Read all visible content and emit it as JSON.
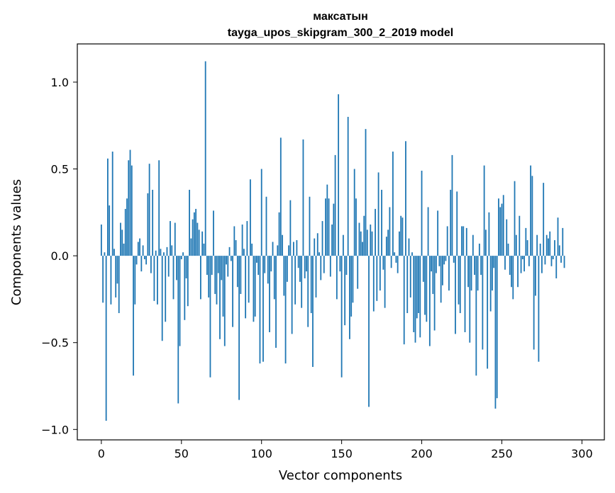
{
  "chart_data": {
    "type": "bar",
    "title": [
      "максатын",
      "tayga_upos_skipgram_300_2_2019 model"
    ],
    "xlabel": "Vector components",
    "ylabel": "Components values",
    "xlim": [
      -15,
      314
    ],
    "ylim": [
      -1.06,
      1.22
    ],
    "xticks": [
      0,
      50,
      100,
      150,
      200,
      250,
      300
    ],
    "yticks": [
      -1.0,
      -0.5,
      0.0,
      0.5,
      1.0
    ],
    "ytick_labels": [
      "−1.0",
      "−0.5",
      "0.0",
      "0.5",
      "1.0"
    ],
    "grid": false,
    "bar_color": "#1f77b4",
    "values": [
      0.18,
      -0.27,
      0.02,
      -0.95,
      0.56,
      0.29,
      -0.28,
      0.6,
      0.04,
      -0.24,
      -0.16,
      -0.33,
      0.19,
      0.15,
      0.07,
      0.27,
      0.33,
      0.55,
      0.61,
      0.52,
      -0.69,
      -0.28,
      -0.05,
      0.08,
      0.1,
      -0.09,
      0.06,
      -0.02,
      -0.05,
      0.36,
      0.53,
      -0.1,
      0.38,
      -0.26,
      0.03,
      -0.28,
      0.55,
      0.04,
      -0.49,
      0.02,
      -0.38,
      0.05,
      -0.12,
      0.2,
      0.06,
      -0.25,
      0.19,
      -0.14,
      -0.85,
      -0.52,
      -0.02,
      0.02,
      -0.37,
      -0.13,
      -0.29,
      0.38,
      0.1,
      0.21,
      0.25,
      0.27,
      0.19,
      0.15,
      -0.25,
      0.14,
      0.07,
      1.12,
      -0.11,
      -0.24,
      -0.7,
      -0.11,
      0.26,
      -0.22,
      -0.28,
      -0.1,
      -0.48,
      -0.14,
      -0.35,
      -0.52,
      -0.05,
      -0.12,
      0.05,
      -0.03,
      -0.41,
      0.17,
      0.09,
      -0.18,
      -0.83,
      -0.22,
      0.18,
      0.04,
      -0.36,
      0.2,
      -0.27,
      0.44,
      0.07,
      -0.38,
      -0.35,
      -0.04,
      -0.11,
      -0.62,
      0.5,
      -0.61,
      -0.1,
      0.34,
      -0.16,
      -0.44,
      -0.09,
      0.08,
      -0.25,
      -0.53,
      0.06,
      0.25,
      0.68,
      0.12,
      -0.23,
      -0.62,
      -0.15,
      0.06,
      0.32,
      -0.45,
      0.08,
      -0.28,
      0.09,
      -0.07,
      -0.15,
      -0.3,
      0.67,
      -0.13,
      -0.09,
      -0.41,
      0.34,
      -0.33,
      -0.64,
      0.1,
      -0.24,
      0.13,
      0.02,
      -0.14,
      0.2,
      -0.1,
      0.33,
      0.41,
      0.33,
      -0.12,
      0.18,
      0.3,
      0.58,
      -0.25,
      0.93,
      -0.09,
      -0.7,
      0.12,
      -0.4,
      -0.11,
      0.8,
      -0.48,
      -0.35,
      -0.27,
      0.5,
      0.33,
      -0.19,
      0.19,
      0.14,
      0.08,
      0.23,
      0.73,
      0.15,
      -0.87,
      0.18,
      0.14,
      -0.32,
      0.27,
      -0.26,
      0.48,
      -0.2,
      0.38,
      -0.08,
      -0.3,
      0.11,
      0.15,
      0.28,
      -0.07,
      0.6,
      0.02,
      -0.04,
      -0.1,
      0.14,
      0.23,
      0.22,
      -0.51,
      0.66,
      -0.33,
      0.1,
      -0.24,
      0.02,
      -0.44,
      -0.5,
      -0.36,
      -0.33,
      -0.47,
      0.49,
      -0.15,
      -0.34,
      -0.38,
      0.28,
      -0.52,
      -0.09,
      -0.22,
      -0.43,
      -0.1,
      0.26,
      -0.06,
      -0.27,
      -0.17,
      -0.05,
      -0.03,
      0.17,
      -0.2,
      0.38,
      0.58,
      -0.04,
      -0.45,
      0.37,
      -0.28,
      -0.33,
      0.17,
      0.17,
      -0.44,
      0.16,
      -0.18,
      -0.5,
      -0.2,
      0.12,
      -0.11,
      -0.69,
      -0.2,
      0.07,
      -0.11,
      -0.54,
      0.52,
      0.15,
      -0.65,
      0.25,
      -0.32,
      -0.2,
      -0.07,
      -0.88,
      -0.82,
      0.33,
      0.28,
      0.3,
      0.35,
      -0.08,
      0.21,
      0.07,
      -0.11,
      -0.18,
      -0.25,
      0.43,
      0.12,
      -0.18,
      0.23,
      -0.1,
      -0.02,
      -0.09,
      0.16,
      0.09,
      -0.06,
      0.52,
      0.46,
      -0.54,
      -0.23,
      0.12,
      -0.61,
      0.07,
      -0.1,
      0.42,
      -0.05,
      0.12,
      0.1,
      0.14,
      -0.06,
      -0.02,
      0.09,
      -0.13,
      0.22,
      0.06,
      -0.04,
      0.16,
      -0.07
    ]
  }
}
